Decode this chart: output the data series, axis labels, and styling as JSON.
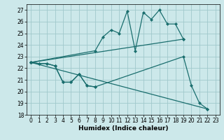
{
  "xlabel": "Humidex (Indice chaleur)",
  "xlim": [
    -0.5,
    23.5
  ],
  "ylim": [
    18,
    27.5
  ],
  "yticks": [
    18,
    19,
    20,
    21,
    22,
    23,
    24,
    25,
    26,
    27
  ],
  "xticks": [
    0,
    1,
    2,
    3,
    4,
    5,
    6,
    7,
    8,
    9,
    10,
    11,
    12,
    13,
    14,
    15,
    16,
    17,
    18,
    19,
    20,
    21,
    22,
    23
  ],
  "background_color": "#cce8ea",
  "grid_color": "#a0c8cc",
  "line_color": "#1a6e6e",
  "line1_x": [
    0,
    1,
    2,
    3,
    4,
    5,
    6,
    7,
    8
  ],
  "line1_y": [
    22.5,
    22.4,
    22.4,
    22.2,
    20.8,
    20.8,
    21.5,
    20.5,
    20.4
  ],
  "line2_x": [
    0,
    1,
    2,
    3,
    4,
    5,
    6,
    7,
    8,
    19,
    20,
    21,
    22
  ],
  "line2_y": [
    22.5,
    22.4,
    22.4,
    22.2,
    20.8,
    20.8,
    21.5,
    20.5,
    20.4,
    23.0,
    20.5,
    19.0,
    18.5
  ],
  "line3_x": [
    0,
    22
  ],
  "line3_y": [
    22.5,
    18.5
  ],
  "line4_x": [
    0,
    8,
    9,
    10,
    11,
    12,
    13,
    14,
    15,
    16,
    17,
    18,
    19
  ],
  "line4_y": [
    22.5,
    23.5,
    24.7,
    25.3,
    25.0,
    26.9,
    23.5,
    26.8,
    26.2,
    27.0,
    25.8,
    25.8,
    24.5
  ],
  "line5_x": [
    0,
    19
  ],
  "line5_y": [
    22.5,
    24.5
  ]
}
